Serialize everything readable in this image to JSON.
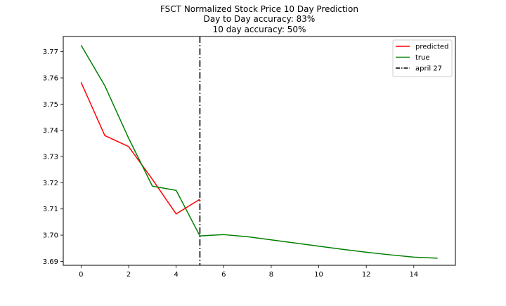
{
  "chart_data": {
    "type": "line",
    "title_lines": [
      "FSCT Normalized Stock Price 10 Day Prediction",
      "Day to Day accuracy: 83%",
      "10 day accuracy: 50%"
    ],
    "xlabel": "",
    "ylabel": "",
    "xlim": [
      -0.75,
      15.75
    ],
    "ylim": [
      3.6885,
      3.7758
    ],
    "x_ticks": [
      0,
      2,
      4,
      6,
      8,
      10,
      12,
      14
    ],
    "x_tick_labels": [
      "0",
      "2",
      "4",
      "6",
      "8",
      "10",
      "12",
      "14"
    ],
    "y_ticks": [
      3.69,
      3.7,
      3.71,
      3.72,
      3.73,
      3.74,
      3.75,
      3.76,
      3.77
    ],
    "y_tick_labels": [
      "3.69",
      "3.70",
      "3.71",
      "3.72",
      "3.73",
      "3.74",
      "3.75",
      "3.76",
      "3.77"
    ],
    "grid": false,
    "legend_position": "top-right",
    "series": [
      {
        "name": "predicted",
        "color": "#ff0000",
        "style": "solid",
        "x": [
          0,
          1,
          2,
          3,
          4,
          5
        ],
        "y": [
          3.7583,
          3.738,
          3.7338,
          3.7213,
          3.7081,
          3.7137
        ]
      },
      {
        "name": "true",
        "color": "#008000",
        "style": "solid",
        "x": [
          0,
          1,
          2,
          3,
          4,
          5,
          6,
          7,
          8,
          9,
          10,
          11,
          12,
          13,
          14,
          15
        ],
        "y": [
          3.7725,
          3.757,
          3.737,
          3.7187,
          3.7171,
          3.6997,
          3.7002,
          3.6994,
          3.6982,
          3.697,
          3.6958,
          3.6946,
          3.6935,
          3.6925,
          3.6916,
          3.6912
        ]
      }
    ],
    "vlines": [
      {
        "name": "april 27",
        "x": 5,
        "color": "#000000",
        "style": "dashdot"
      }
    ]
  }
}
